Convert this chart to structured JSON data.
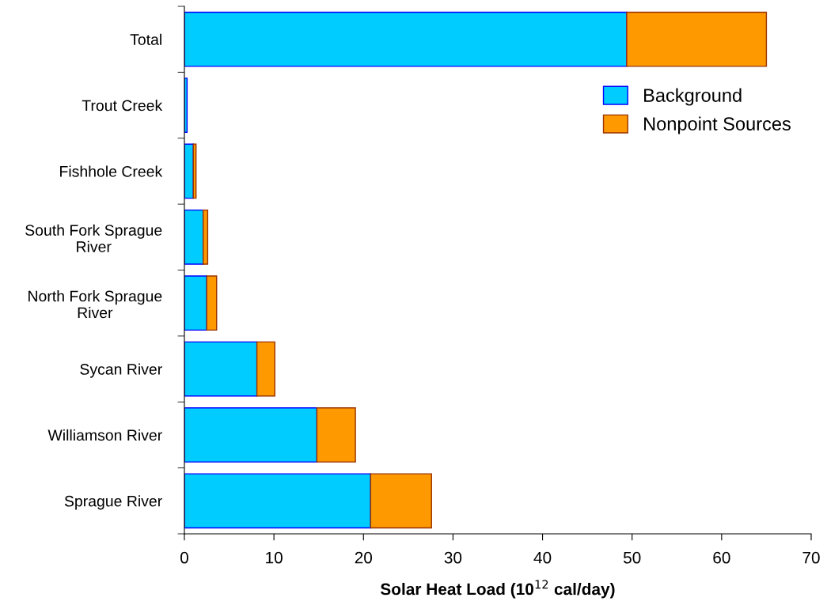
{
  "chart_data": {
    "type": "bar",
    "orientation": "horizontal",
    "stacked": true,
    "categories": [
      "Total",
      "Trout Creek",
      "Fishhole Creek",
      "South Fork Sprague River",
      "North Fork Sprague River",
      "Sycan River",
      "Williamson River",
      "Sprague River"
    ],
    "series": [
      {
        "name": "Background",
        "color": "#00ccff",
        "values": [
          49.4,
          0.3,
          1.0,
          2.1,
          2.5,
          8.1,
          14.8,
          20.8
        ]
      },
      {
        "name": "Nonpoint Sources",
        "color": "#ff9900",
        "values": [
          15.6,
          null,
          0.3,
          0.5,
          1.1,
          2.0,
          4.3,
          6.8
        ]
      }
    ],
    "xlabel": "Solar Heat Load (10$^{12}$ cal/day)",
    "xlim": [
      0,
      70
    ],
    "xticks": [
      0,
      10,
      20,
      30,
      40,
      50,
      60,
      70
    ],
    "grid": false,
    "legend": "top right"
  }
}
